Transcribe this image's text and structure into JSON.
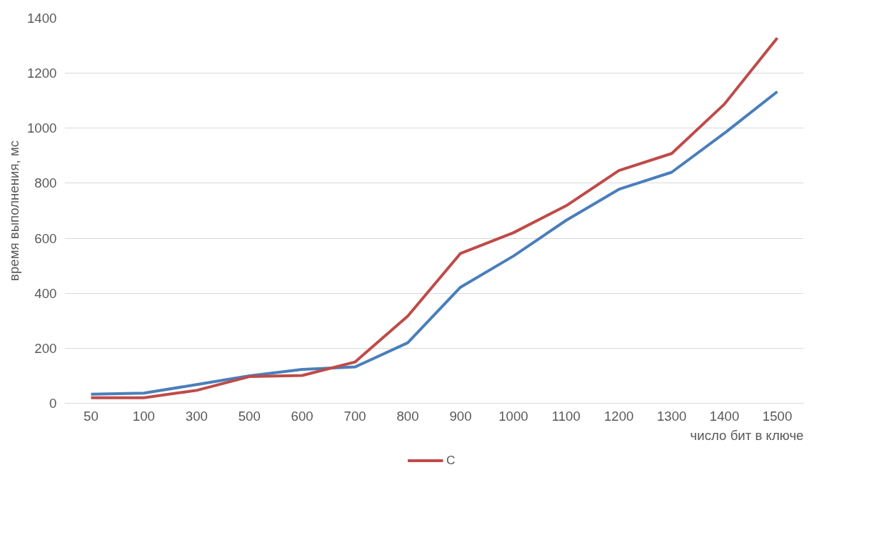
{
  "chart_data": {
    "type": "line",
    "xlabel": "число бит в ключе",
    "ylabel": "время выполнения, мс",
    "categories": [
      "50",
      "100",
      "300",
      "500",
      "600",
      "700",
      "800",
      "900",
      "1000",
      "1100",
      "1200",
      "1300",
      "1400",
      "1500"
    ],
    "series": [
      {
        "color": "#4a7ebb",
        "values": [
          33,
          37,
          68,
          100,
          123,
          132,
          220,
          422,
          535,
          665,
          778,
          840,
          982,
          1133
        ]
      },
      {
        "name": "C",
        "color": "#be4b48",
        "values": [
          20,
          20,
          47,
          97,
          101,
          150,
          317,
          545,
          620,
          718,
          846,
          908,
          1088,
          1328
        ]
      }
    ],
    "ylim": [
      0,
      1400
    ],
    "yticks": [
      0,
      200,
      400,
      600,
      800,
      1000,
      1200,
      1400
    ],
    "grid": "y",
    "legend": "bottom",
    "line_style": "solid"
  }
}
